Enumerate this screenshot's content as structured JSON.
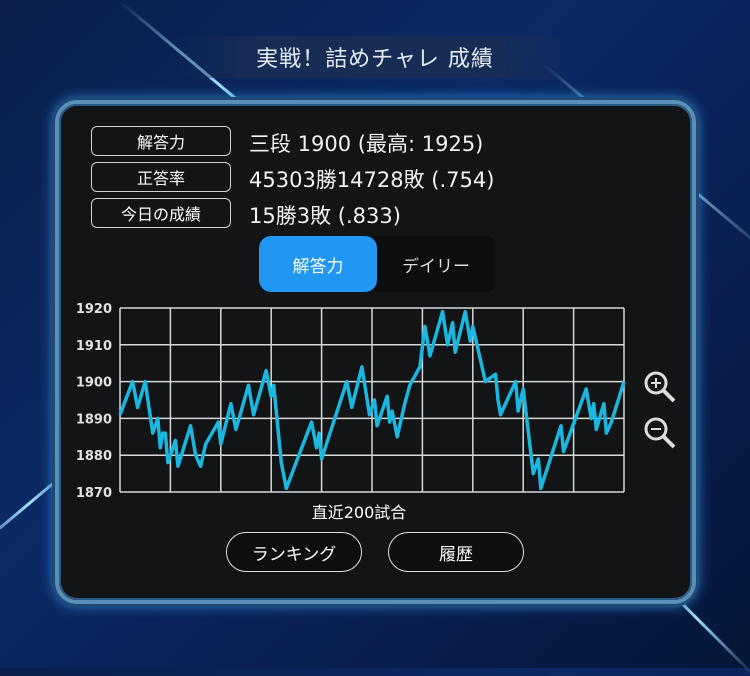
{
  "title": "実戦！詰めチャレ 成績",
  "stats": [
    {
      "label": "解答力",
      "value": "三段 1900 (最高: 1925)"
    },
    {
      "label": "正答率",
      "value": "45303勝14728敗 (.754)"
    },
    {
      "label": "今日の成績",
      "value": "15勝3敗 (.833)"
    }
  ],
  "tabs": [
    {
      "label": "解答力",
      "active": true
    },
    {
      "label": "デイリー",
      "active": false
    }
  ],
  "zoom_icons": [
    "zoom-in-icon",
    "zoom-out-icon"
  ],
  "buttons": {
    "ranking": "ランキング",
    "history": "履歴"
  },
  "colors": {
    "line": "#1ab8e0",
    "tab_active": "#2196f3",
    "grid": "#d8d8d8"
  },
  "chart_data": {
    "type": "line",
    "xlabel": "直近200試合",
    "ylabel": "",
    "xlim": [
      0,
      200
    ],
    "ylim": [
      1870,
      1920
    ],
    "yticks": [
      1920,
      1910,
      1900,
      1890,
      1880,
      1870
    ],
    "grid": true,
    "x": [
      0,
      5,
      7,
      10,
      13,
      15,
      16,
      17,
      18,
      19,
      22,
      23,
      28,
      30,
      32,
      34,
      39,
      40,
      44,
      46,
      51,
      53,
      58,
      60,
      61,
      64,
      66,
      76,
      78,
      79,
      80,
      90,
      92,
      96,
      99,
      101,
      102,
      106,
      107,
      108,
      110,
      113,
      115,
      119,
      121,
      123,
      128,
      130,
      132,
      133,
      137,
      139,
      140,
      145,
      149,
      150,
      151,
      157,
      158,
      160,
      164,
      166,
      167,
      175,
      176,
      185,
      187,
      188,
      189,
      192,
      193,
      195,
      200
    ],
    "y": [
      1891,
      1900,
      1893,
      1900,
      1886,
      1890,
      1882,
      1886,
      1886,
      1878,
      1884,
      1877,
      1888,
      1880,
      1877,
      1883,
      1889,
      1883,
      1894,
      1887,
      1899,
      1891,
      1903,
      1896,
      1899,
      1878,
      1871,
      1889,
      1882,
      1886,
      1879,
      1900,
      1893,
      1904,
      1891,
      1895,
      1888,
      1896,
      1889,
      1892,
      1885,
      1894,
      1899,
      1904,
      1915,
      1907,
      1919,
      1910,
      1916,
      1908,
      1919,
      1911,
      1915,
      1900,
      1902,
      1895,
      1891,
      1900,
      1892,
      1898,
      1875,
      1879,
      1871,
      1888,
      1881,
      1898,
      1890,
      1894,
      1887,
      1894,
      1886,
      1889,
      1900
    ]
  }
}
